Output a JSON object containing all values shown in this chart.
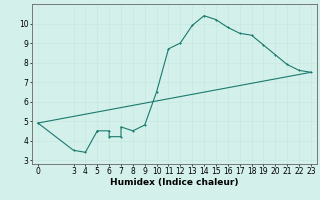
{
  "xlabel": "Humidex (Indice chaleur)",
  "background_color": "#d4f0eb",
  "line_color": "#1a7a6e",
  "marker_color": "#1a7a6e",
  "line1_x": [
    0,
    3,
    4,
    5,
    5,
    6,
    6,
    7,
    7,
    8,
    9,
    10,
    11,
    12,
    13,
    14,
    15,
    16,
    17,
    18,
    19,
    20,
    21,
    22,
    23
  ],
  "line1_y": [
    4.9,
    3.5,
    3.4,
    4.5,
    4.5,
    4.5,
    4.2,
    4.2,
    4.7,
    4.5,
    4.8,
    6.5,
    8.7,
    9.0,
    9.9,
    10.4,
    10.2,
    9.8,
    9.5,
    9.4,
    8.9,
    8.4,
    7.9,
    7.6,
    7.5
  ],
  "line2_x": [
    0,
    23
  ],
  "line2_y": [
    4.9,
    7.5
  ],
  "xlim": [
    -0.5,
    23.5
  ],
  "ylim": [
    2.8,
    11.0
  ],
  "x_ticks": [
    0,
    3,
    4,
    5,
    6,
    7,
    8,
    9,
    10,
    11,
    12,
    13,
    14,
    15,
    16,
    17,
    18,
    19,
    20,
    21,
    22,
    23
  ],
  "y_ticks": [
    3,
    4,
    5,
    6,
    7,
    8,
    9,
    10
  ],
  "grid_color": "#c8e8e2",
  "tick_fontsize": 5.5,
  "xlabel_fontsize": 6.5,
  "linewidth": 0.8,
  "markersize": 2.0
}
